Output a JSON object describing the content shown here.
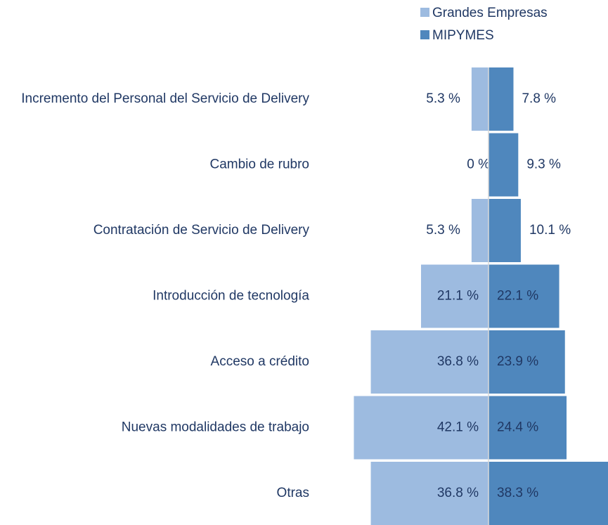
{
  "chart_data": {
    "type": "butterfly",
    "categories": [
      "Incremento del Personal del Servicio de Delivery",
      "Cambio de rubro",
      "Contratación de Servicio de Delivery",
      "Introducción de tecnología",
      "Acceso a crédito",
      "Nuevas modalidades de trabajo",
      "Otras"
    ],
    "series": [
      {
        "name": "Grandes Empresas",
        "color": "#9dbbe0",
        "values": [
          5.3,
          0,
          5.3,
          21.1,
          36.8,
          42.1,
          36.8
        ],
        "value_labels": [
          "5.3 %",
          "0 %",
          "5.3 %",
          "21.1 %",
          "36.8 %",
          "42.1 %",
          "36.8 %"
        ]
      },
      {
        "name": "MIPYMES",
        "color": "#4f87bd",
        "values": [
          7.8,
          9.3,
          10.1,
          22.1,
          23.9,
          24.4,
          38.3
        ],
        "value_labels": [
          "7.8 %",
          "9.3 %",
          "10.1 %",
          "22.1 %",
          "23.9 %",
          "24.4 %",
          "38.3 %"
        ]
      }
    ],
    "legend": "top"
  }
}
